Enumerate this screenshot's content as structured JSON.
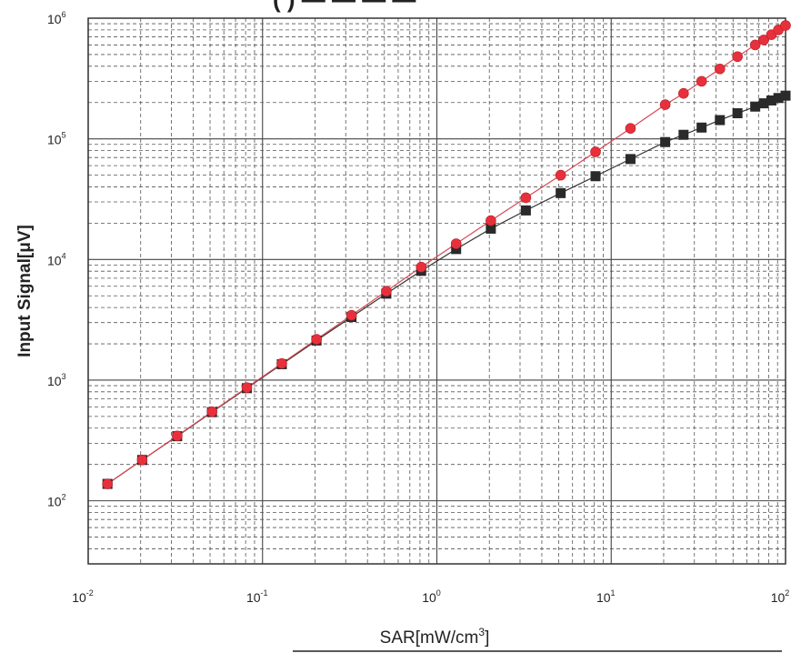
{
  "chart_data": {
    "type": "scatter",
    "title_visible": "(                    )  —  —  —  —",
    "xlabel_base": "SAR[mW/cm",
    "xlabel_sup": "3",
    "xlabel_end": "]",
    "ylabel": "Input Signal[μV]",
    "x_scale": "log",
    "y_scale": "log",
    "xlim": [
      0.01,
      100
    ],
    "ylim": [
      30,
      1000000
    ],
    "grid": true,
    "x_ticks": [
      {
        "base": "10",
        "exp": "-2",
        "value": 0.01
      },
      {
        "base": "10",
        "exp": "-1",
        "value": 0.1
      },
      {
        "base": "10",
        "exp": "0",
        "value": 1
      },
      {
        "base": "10",
        "exp": "1",
        "value": 10
      },
      {
        "base": "10",
        "exp": "2",
        "value": 100
      }
    ],
    "y_ticks": [
      {
        "base": "10",
        "exp": "2",
        "value": 100
      },
      {
        "base": "10",
        "exp": "3",
        "value": 1000
      },
      {
        "base": "10",
        "exp": "4",
        "value": 10000
      },
      {
        "base": "10",
        "exp": "5",
        "value": 100000
      },
      {
        "base": "10",
        "exp": "6",
        "value": 1000000
      }
    ],
    "series": [
      {
        "marker": "circle",
        "color": "#e8303c",
        "line_color": "#d84850",
        "points": [
          [
            0.0129,
            138
          ],
          [
            0.0204,
            218
          ],
          [
            0.0324,
            345
          ],
          [
            0.0513,
            548
          ],
          [
            0.0813,
            868
          ],
          [
            0.129,
            1375
          ],
          [
            0.204,
            2180
          ],
          [
            0.324,
            3450
          ],
          [
            0.513,
            5460
          ],
          [
            0.813,
            8650
          ],
          [
            1.29,
            13500
          ],
          [
            2.04,
            21000
          ],
          [
            3.24,
            32500
          ],
          [
            5.13,
            50000
          ],
          [
            8.13,
            78000
          ],
          [
            12.9,
            122000
          ],
          [
            20.4,
            192000
          ],
          [
            26.0,
            238000
          ],
          [
            33.0,
            300000
          ],
          [
            42.0,
            380000
          ],
          [
            53.0,
            480000
          ],
          [
            67.0,
            600000
          ],
          [
            75.0,
            660000
          ],
          [
            83.0,
            730000
          ],
          [
            91.0,
            800000
          ],
          [
            100.0,
            870000
          ]
        ]
      },
      {
        "marker": "square",
        "color": "#2a2a2a",
        "line_color": "#333333",
        "points": [
          [
            0.0129,
            138
          ],
          [
            0.0204,
            218
          ],
          [
            0.0324,
            343
          ],
          [
            0.0513,
            543
          ],
          [
            0.0813,
            858
          ],
          [
            0.129,
            1355
          ],
          [
            0.204,
            2130
          ],
          [
            0.324,
            3340
          ],
          [
            0.513,
            5210
          ],
          [
            0.813,
            8050
          ],
          [
            1.29,
            12200
          ],
          [
            2.04,
            18000
          ],
          [
            3.24,
            25500
          ],
          [
            5.13,
            35500
          ],
          [
            8.13,
            49000
          ],
          [
            12.9,
            68000
          ],
          [
            20.4,
            94000
          ],
          [
            26.0,
            108000
          ],
          [
            33.0,
            124000
          ],
          [
            42.0,
            143000
          ],
          [
            53.0,
            163000
          ],
          [
            67.0,
            185000
          ],
          [
            75.0,
            197000
          ],
          [
            83.0,
            208000
          ],
          [
            91.0,
            218000
          ],
          [
            100.0,
            228000
          ]
        ]
      }
    ]
  }
}
